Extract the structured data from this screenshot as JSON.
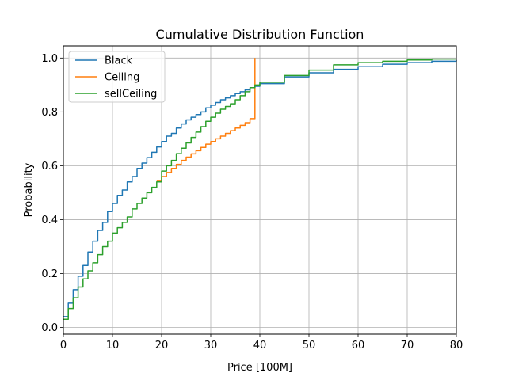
{
  "chart_data": {
    "type": "line",
    "title": "Cumulative Distribution Function",
    "xlabel": "Price [100M]",
    "ylabel": "Probability",
    "xlim": [
      0,
      80
    ],
    "ylim": [
      -0.025,
      1.045
    ],
    "xticks": [
      0,
      10,
      20,
      30,
      40,
      50,
      60,
      70,
      80
    ],
    "yticks": [
      0.0,
      0.2,
      0.4,
      0.6,
      0.8,
      1.0
    ],
    "grid": true,
    "legend_position": "top-left",
    "series": [
      {
        "name": "Black",
        "color": "#1f77b4",
        "step": true,
        "points": [
          [
            0,
            0.04
          ],
          [
            1,
            0.09
          ],
          [
            2,
            0.14
          ],
          [
            3,
            0.19
          ],
          [
            4,
            0.23
          ],
          [
            5,
            0.28
          ],
          [
            6,
            0.32
          ],
          [
            7,
            0.36
          ],
          [
            8,
            0.39
          ],
          [
            9,
            0.43
          ],
          [
            10,
            0.46
          ],
          [
            11,
            0.49
          ],
          [
            12,
            0.51
          ],
          [
            13,
            0.54
          ],
          [
            14,
            0.56
          ],
          [
            15,
            0.59
          ],
          [
            16,
            0.61
          ],
          [
            17,
            0.63
          ],
          [
            18,
            0.65
          ],
          [
            19,
            0.67
          ],
          [
            20,
            0.69
          ],
          [
            21,
            0.71
          ],
          [
            22,
            0.72
          ],
          [
            23,
            0.74
          ],
          [
            24,
            0.755
          ],
          [
            25,
            0.77
          ],
          [
            26,
            0.78
          ],
          [
            27,
            0.79
          ],
          [
            28,
            0.8
          ],
          [
            29,
            0.815
          ],
          [
            30,
            0.825
          ],
          [
            31,
            0.835
          ],
          [
            32,
            0.845
          ],
          [
            33,
            0.852
          ],
          [
            34,
            0.86
          ],
          [
            35,
            0.868
          ],
          [
            36,
            0.875
          ],
          [
            37,
            0.882
          ],
          [
            38,
            0.89
          ],
          [
            39,
            0.895
          ],
          [
            40,
            0.905
          ],
          [
            45,
            0.93
          ],
          [
            50,
            0.945
          ],
          [
            55,
            0.958
          ],
          [
            60,
            0.968
          ],
          [
            65,
            0.977
          ],
          [
            70,
            0.983
          ],
          [
            75,
            0.988
          ],
          [
            80,
            0.992
          ]
        ]
      },
      {
        "name": "Ceiling",
        "color": "#ff7f0e",
        "step": true,
        "points": [
          [
            19,
            0.545
          ],
          [
            20,
            0.56
          ],
          [
            21,
            0.575
          ],
          [
            22,
            0.59
          ],
          [
            23,
            0.605
          ],
          [
            24,
            0.62
          ],
          [
            25,
            0.632
          ],
          [
            26,
            0.644
          ],
          [
            27,
            0.656
          ],
          [
            28,
            0.668
          ],
          [
            29,
            0.68
          ],
          [
            30,
            0.69
          ],
          [
            31,
            0.7
          ],
          [
            32,
            0.71
          ],
          [
            33,
            0.72
          ],
          [
            34,
            0.73
          ],
          [
            35,
            0.74
          ],
          [
            36,
            0.75
          ],
          [
            37,
            0.76
          ],
          [
            38,
            0.775
          ],
          [
            39,
            1.0
          ]
        ]
      },
      {
        "name": "sellCeiling",
        "color": "#2ca02c",
        "step": true,
        "points": [
          [
            0,
            0.03
          ],
          [
            1,
            0.07
          ],
          [
            2,
            0.11
          ],
          [
            3,
            0.15
          ],
          [
            4,
            0.18
          ],
          [
            5,
            0.21
          ],
          [
            6,
            0.24
          ],
          [
            7,
            0.27
          ],
          [
            8,
            0.3
          ],
          [
            9,
            0.32
          ],
          [
            10,
            0.35
          ],
          [
            11,
            0.37
          ],
          [
            12,
            0.39
          ],
          [
            13,
            0.41
          ],
          [
            14,
            0.44
          ],
          [
            15,
            0.46
          ],
          [
            16,
            0.48
          ],
          [
            17,
            0.5
          ],
          [
            18,
            0.52
          ],
          [
            19,
            0.54
          ],
          [
            20,
            0.58
          ],
          [
            21,
            0.6
          ],
          [
            22,
            0.62
          ],
          [
            23,
            0.645
          ],
          [
            24,
            0.665
          ],
          [
            25,
            0.685
          ],
          [
            26,
            0.705
          ],
          [
            27,
            0.725
          ],
          [
            28,
            0.745
          ],
          [
            29,
            0.765
          ],
          [
            30,
            0.78
          ],
          [
            31,
            0.795
          ],
          [
            32,
            0.81
          ],
          [
            33,
            0.82
          ],
          [
            34,
            0.83
          ],
          [
            35,
            0.845
          ],
          [
            36,
            0.86
          ],
          [
            37,
            0.875
          ],
          [
            38,
            0.89
          ],
          [
            39,
            0.9
          ],
          [
            40,
            0.91
          ],
          [
            45,
            0.935
          ],
          [
            50,
            0.955
          ],
          [
            55,
            0.975
          ],
          [
            60,
            0.983
          ],
          [
            65,
            0.988
          ],
          [
            70,
            0.993
          ],
          [
            75,
            0.996
          ],
          [
            80,
            0.998
          ]
        ]
      }
    ]
  }
}
